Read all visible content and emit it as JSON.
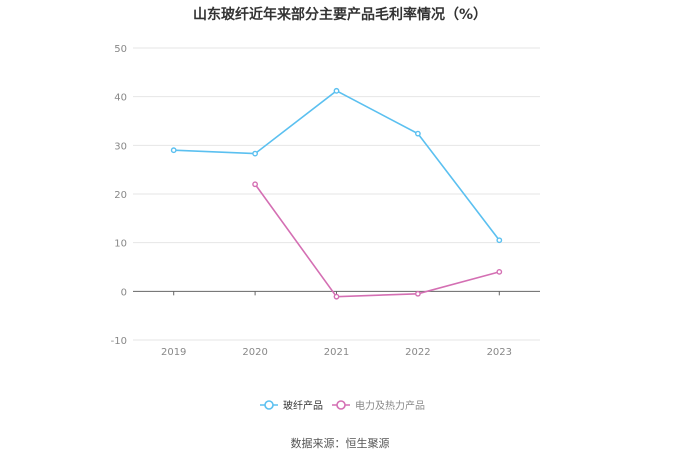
{
  "title": "山东玻纤近年来部分主要产品毛利率情况（%）",
  "source": "数据来源：恒生聚源",
  "chart_data": {
    "type": "line",
    "title": "山东玻纤近年来部分主要产品毛利率情况（%）",
    "xlabel": "",
    "ylabel": "",
    "categories": [
      "2019",
      "2020",
      "2021",
      "2022",
      "2023"
    ],
    "ylim": [
      -10,
      50
    ],
    "yticks": [
      -10,
      0,
      10,
      20,
      30,
      40,
      50
    ],
    "grid": true,
    "legend_position": "bottom-center",
    "series": [
      {
        "name": "玻纤产品",
        "color": "#5bc0f0",
        "values": [
          29.0,
          28.3,
          41.2,
          32.4,
          10.5
        ]
      },
      {
        "name": "电力及热力产品",
        "color": "#d46fb3",
        "values": [
          null,
          22.0,
          -1.1,
          -0.5,
          4.0
        ]
      }
    ]
  }
}
